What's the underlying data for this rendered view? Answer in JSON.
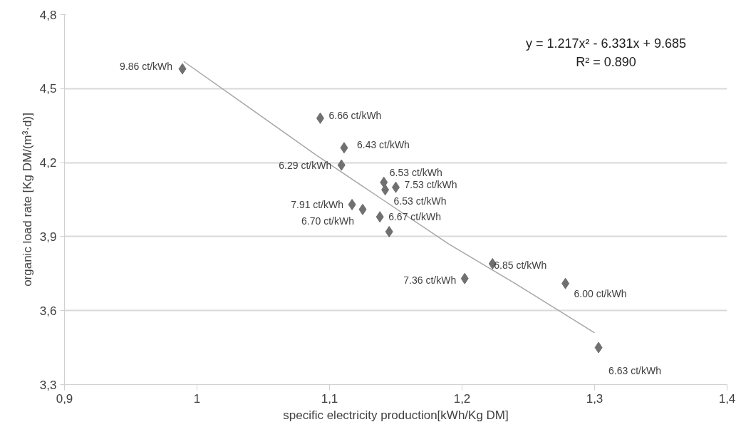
{
  "chart_data": {
    "type": "scatter",
    "xlabel": "specific electricity production[kWh/Kg DM]",
    "ylabel": "organic load rate [Kg DM/(m³·d)]",
    "x": [
      0.989,
      1.093,
      1.111,
      1.109,
      1.141,
      1.15,
      1.142,
      1.117,
      1.125,
      1.138,
      1.145,
      1.223,
      1.202,
      1.278,
      1.303
    ],
    "series": [
      {
        "color": "#707070",
        "marker": "diamond",
        "values": [
          4.58,
          4.38,
          4.26,
          4.19,
          4.12,
          4.1,
          4.09,
          4.03,
          4.01,
          3.98,
          3.92,
          3.79,
          3.73,
          3.71,
          3.45
        ]
      },
      {
        "type": "line",
        "color": "#a6a6a6",
        "line_style": "solid",
        "marker": "none",
        "x": [
          0.99,
          1.04,
          1.09,
          1.14,
          1.19,
          1.24,
          1.3
        ],
        "values": [
          4.61,
          4.42,
          4.23,
          4.05,
          3.87,
          3.71,
          3.51
        ]
      }
    ],
    "xlim": [
      0.9,
      1.4
    ],
    "ylim": [
      3.3,
      4.8
    ],
    "xticks": [
      {
        "value": 0.9,
        "label": "0,9"
      },
      1,
      {
        "value": 1.1,
        "label": "1,1"
      },
      {
        "value": 1.2,
        "label": "1,2"
      },
      {
        "value": 1.3,
        "label": "1,3"
      },
      {
        "value": 1.4,
        "label": "1,4"
      }
    ],
    "yticks": [
      {
        "value": 3.3,
        "label": "3,3"
      },
      {
        "value": 3.6,
        "label": "3,6"
      },
      {
        "value": 3.9,
        "label": "3,9"
      },
      {
        "value": 4.2,
        "label": "4,2"
      },
      {
        "value": 4.5,
        "label": "4,5"
      },
      {
        "value": 4.8,
        "label": "4,8"
      }
    ],
    "grid": "y",
    "annotations": [
      "y = 1.217x² - 6.331x + 9.685",
      "R² = 0.890",
      {
        "text": "9.86 ct/kWh",
        "x": 0.989,
        "y": 4.58
      },
      {
        "text": "6.66 ct/kWh",
        "x": 1.093,
        "y": 4.38
      },
      {
        "text": "6.43 ct/kWh",
        "x": 1.111,
        "y": 4.26
      },
      {
        "text": "6.29 ct/kWh",
        "x": 1.109,
        "y": 4.19
      },
      {
        "text": "6.53 ct/kWh",
        "x": 1.141,
        "y": 4.12
      },
      {
        "text": "7.53 ct/kWh",
        "x": 1.15,
        "y": 4.1
      },
      {
        "text": "6.53 ct/kWh",
        "x": 1.142,
        "y": 4.09
      },
      {
        "text": "7.91 ct/kWh",
        "x": 1.117,
        "y": 4.03
      },
      {
        "text": "6.70 ct/kWh",
        "x": 1.125,
        "y": 4.01
      },
      {
        "text": "6.67 ct/kWh",
        "x": 1.138,
        "y": 3.98
      },
      {
        "text": "6.85 ct/kWh",
        "x": 1.223,
        "y": 3.79
      },
      {
        "text": "7.36 ct/kWh",
        "x": 1.202,
        "y": 3.73
      },
      {
        "text": "6.00 ct/kWh",
        "x": 1.278,
        "y": 3.71
      },
      {
        "text": "6.63 ct/kWh",
        "x": 1.303,
        "y": 3.45
      }
    ]
  }
}
